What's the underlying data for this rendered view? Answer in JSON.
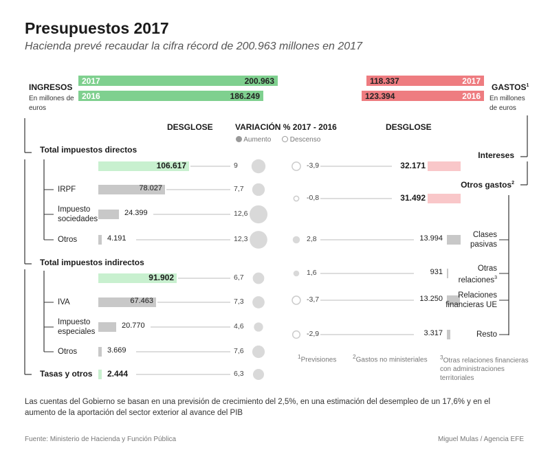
{
  "title": "Presupuestos 2017",
  "subtitle": "Hacienda prevé recaudar la cifra récord de 200.963 millones en 2017",
  "ingresos": {
    "label": "INGRESOS",
    "unit": "En millones de euros",
    "totals": [
      {
        "year": "2017",
        "value_label": "200.963",
        "value": 200963
      },
      {
        "year": "2016",
        "value_label": "186.249",
        "value": 186249
      }
    ]
  },
  "gastos": {
    "label": "GASTOS",
    "label_sup": "1",
    "unit": "En millones de euros",
    "totals": [
      {
        "year": "2017",
        "value_label": "118.337",
        "value": 118337
      },
      {
        "year": "2016",
        "value_label": "123.394",
        "value": 123394
      }
    ]
  },
  "headers": {
    "desglose_left": "DESGLOSE",
    "variacion": "VARIACIÓN % 2017 - 2016",
    "desglose_right": "DESGLOSE"
  },
  "legend": {
    "aumento": "Aumento",
    "descenso": "Descenso"
  },
  "colors": {
    "ingresos_2017": "#7fd08f",
    "ingresos_2016": "#7fd08f",
    "ingresos_bar": "#c8f0cf",
    "gastos_total": "#ee7c80",
    "gastos_bar": "#f9c7c9",
    "gray_bar": "#c8c8c8",
    "circle_fill": "#d9d9d9",
    "circle_outline": "#cccccc"
  },
  "chart_data": {
    "type": "bar",
    "ingresos": [
      {
        "label": "Total impuestos directos",
        "value": 106617,
        "value_label": "106.617",
        "variacion": 9,
        "variacion_label": "9",
        "kind": "total",
        "aumento": true
      },
      {
        "label": "IRPF",
        "value": 78027,
        "value_label": "78.027",
        "variacion": 7.7,
        "variacion_label": "7,7",
        "kind": "item",
        "aumento": true
      },
      {
        "label": "Impuesto sociedades",
        "value": 24399,
        "value_label": "24.399",
        "variacion": 12.6,
        "variacion_label": "12,6",
        "kind": "item",
        "aumento": true
      },
      {
        "label": "Otros",
        "value": 4191,
        "value_label": "4.191",
        "variacion": 12.3,
        "variacion_label": "12,3",
        "kind": "item",
        "aumento": true
      },
      {
        "label": "Total impuestos indirectos",
        "value": 91902,
        "value_label": "91.902",
        "variacion": 6.7,
        "variacion_label": "6,7",
        "kind": "total",
        "aumento": true
      },
      {
        "label": "IVA",
        "value": 67463,
        "value_label": "67.463",
        "variacion": 7.3,
        "variacion_label": "7,3",
        "kind": "item",
        "aumento": true
      },
      {
        "label": "Impuesto especiales",
        "value": 20770,
        "value_label": "20.770",
        "variacion": 4.6,
        "variacion_label": "4,6",
        "kind": "item",
        "aumento": true
      },
      {
        "label": "Otros",
        "value": 3669,
        "value_label": "3.669",
        "variacion": 7.6,
        "variacion_label": "7,6",
        "kind": "item",
        "aumento": true
      },
      {
        "label": "Tasas y otros",
        "value": 2444,
        "value_label": "2.444",
        "variacion": 6.3,
        "variacion_label": "6,3",
        "kind": "total",
        "aumento": true
      }
    ],
    "gastos": [
      {
        "label": "Intereses",
        "label_sup": "",
        "value": 32171,
        "value_label": "32.171",
        "variacion": -3.9,
        "variacion_label": "-3,9",
        "kind": "total",
        "aumento": false
      },
      {
        "label": "Otros gastos",
        "label_sup": "2",
        "value": 31492,
        "value_label": "31.492",
        "variacion": -0.8,
        "variacion_label": "-0,8",
        "kind": "total",
        "aumento": false
      },
      {
        "label": "Clases pasivas",
        "label_sup": "",
        "value": 13994,
        "value_label": "13.994",
        "variacion": 2.8,
        "variacion_label": "2,8",
        "kind": "item",
        "aumento": true
      },
      {
        "label": "Otras relaciones",
        "label_sup": "3",
        "value": 931,
        "value_label": "931",
        "variacion": 1.6,
        "variacion_label": "1,6",
        "kind": "item",
        "aumento": true
      },
      {
        "label": "Relaciones financieras UE",
        "label_sup": "",
        "value": 13250,
        "value_label": "13.250",
        "variacion": -3.7,
        "variacion_label": "-3,7",
        "kind": "item",
        "aumento": false
      },
      {
        "label": "Resto",
        "label_sup": "",
        "value": 3317,
        "value_label": "3.317",
        "variacion": -2.9,
        "variacion_label": "-2,9",
        "kind": "item",
        "aumento": false
      }
    ]
  },
  "notes": {
    "n1": "Previsiones",
    "n2": "Gastos no ministeriales",
    "n3": "Otras relaciones financieras con administraciones territoriales"
  },
  "footnote": "Las cuentas del Gobierno se basan en una previsión de crecimiento del 2,5%, en una estimación del desempleo de un 17,6% y en el aumento de la aportación del sector exterior al avance del PIB",
  "source": "Fuente: Ministerio de Hacienda y Función Pública",
  "credit": "Miguel Mulas / Agencia EFE"
}
